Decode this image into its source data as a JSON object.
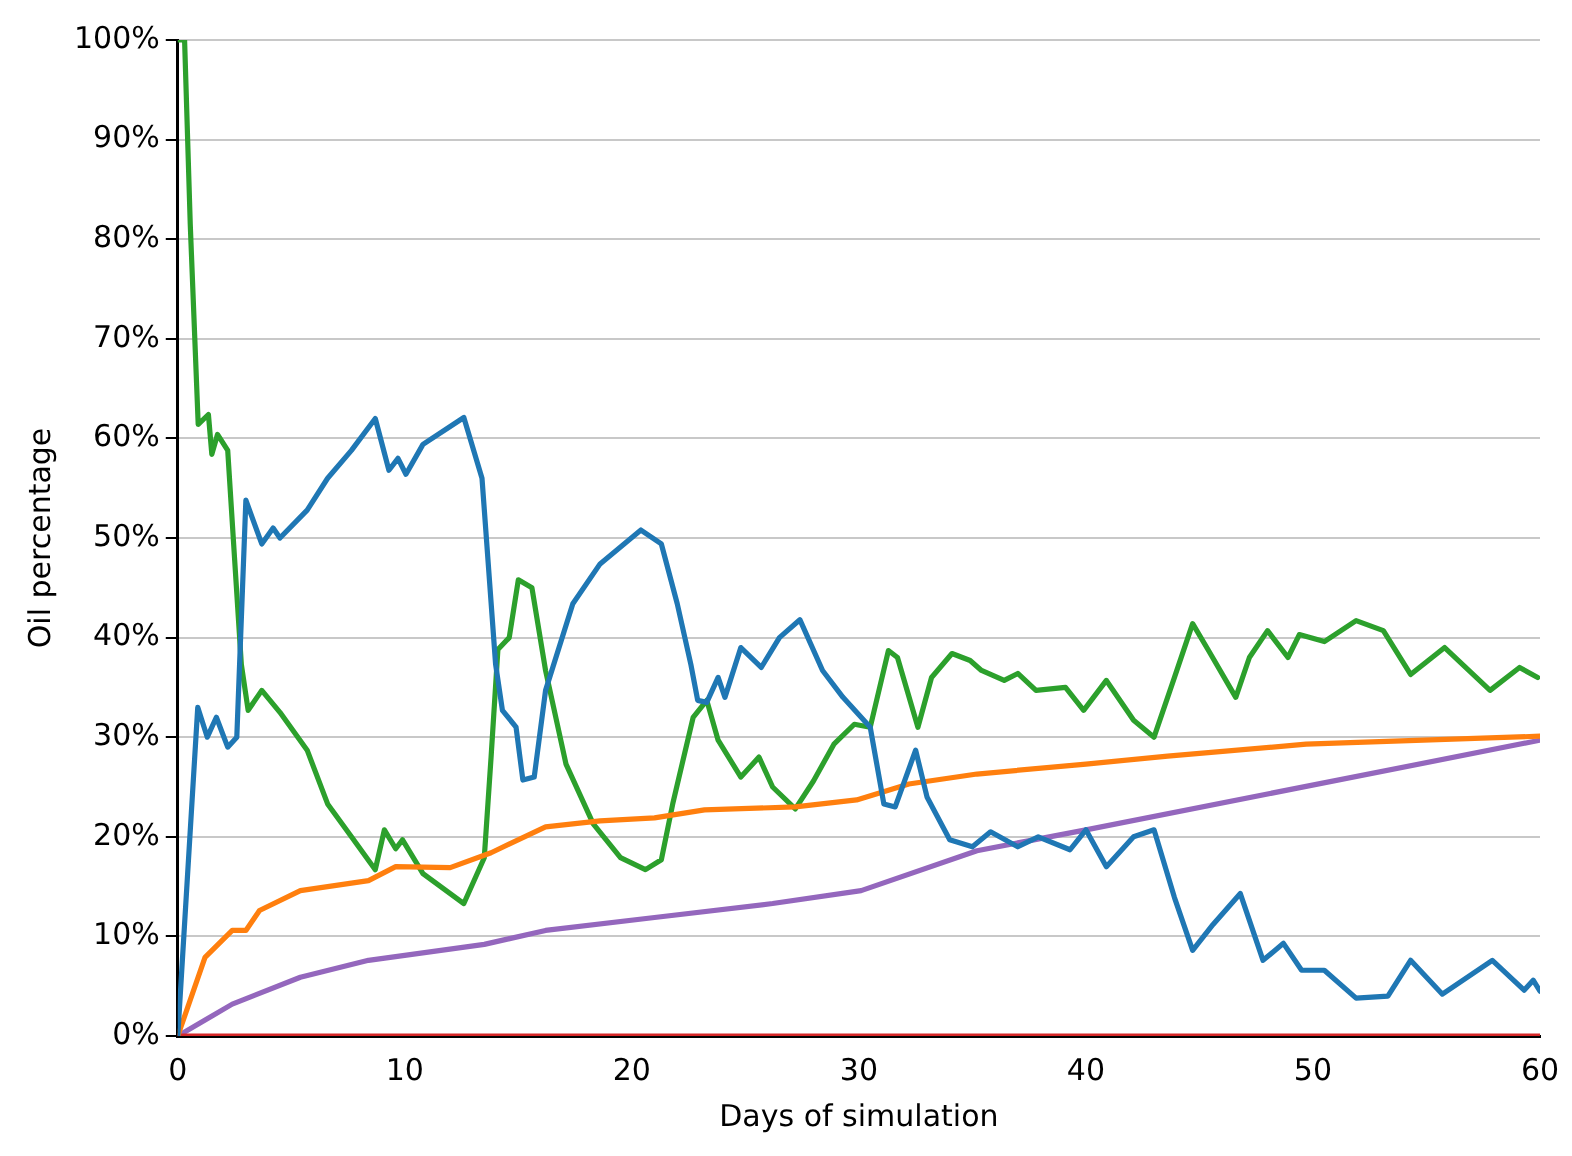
{
  "chart_data": {
    "type": "line",
    "xlabel": "Days of simulation",
    "ylabel": "Oil percentage",
    "xlim": [
      0,
      60
    ],
    "xticks": [
      0,
      10,
      20,
      30,
      40,
      50,
      60
    ],
    "ylim": [
      0,
      100
    ],
    "yticks": [
      {
        "value": 0,
        "label": "0%"
      },
      {
        "value": 10,
        "label": "10%"
      },
      {
        "value": 20,
        "label": "20%"
      },
      {
        "value": 30,
        "label": "30%"
      },
      {
        "value": 40,
        "label": "40%"
      },
      {
        "value": 50,
        "label": "50%"
      },
      {
        "value": 60,
        "label": "60%"
      },
      {
        "value": 70,
        "label": "70%"
      },
      {
        "value": 80,
        "label": "80%"
      },
      {
        "value": 90,
        "label": "90%"
      },
      {
        "value": 100,
        "label": "100%"
      }
    ],
    "grid": "y",
    "legend": false,
    "marker": "none",
    "line_style": "solid",
    "series": [
      {
        "color": "#1f77b4",
        "x": [
          0,
          0.88,
          1.3,
          1.7,
          2.2,
          2.6,
          3.0,
          3.7,
          4.2,
          4.5,
          5.7,
          6.6,
          7.65,
          8.7,
          9.3,
          9.7,
          10.05,
          10.8,
          12.6,
          13.4,
          14,
          14.3,
          14.9,
          15.2,
          15.7,
          16.2,
          17.4,
          18.6,
          20.4,
          21.3,
          22,
          22.6,
          22.9,
          23.3,
          23.8,
          24.1,
          24.8,
          25.7,
          26.5,
          27.4,
          28.4,
          29.3,
          30.5,
          31.1,
          31.6,
          32.5,
          33,
          34,
          35,
          35.8,
          37,
          37.9,
          39.3,
          40,
          40.9,
          42.1,
          43,
          43.9,
          44.7,
          45.6,
          46.8,
          47.8,
          48.7,
          49.5,
          50.5,
          51.9,
          53.3,
          54.3,
          55.7,
          57.9,
          59.3,
          59.7,
          60
        ],
        "values": [
          0,
          33,
          30,
          32,
          29,
          30,
          53.8,
          49.4,
          51,
          50,
          52.8,
          56,
          58.8,
          62,
          56.8,
          58,
          56.4,
          59.4,
          62.1,
          56,
          37.3,
          32.7,
          31,
          25.7,
          26,
          34.7,
          43.4,
          47.4,
          50.8,
          49.4,
          43.4,
          37.3,
          33.7,
          33.5,
          36,
          34,
          39,
          37,
          40,
          41.8,
          36.7,
          34,
          31,
          23.3,
          23,
          28.7,
          24,
          19.7,
          19,
          20.5,
          19,
          20,
          18.7,
          20.7,
          17,
          20,
          20.7,
          13.9,
          8.6,
          11.2,
          14.3,
          7.6,
          9.3,
          6.6,
          6.6,
          3.8,
          4,
          7.6,
          4.2,
          7.6,
          4.6,
          5.6,
          4.5
        ]
      },
      {
        "color": "#ff7f0e",
        "x": [
          0,
          1.2,
          2.4,
          3.0,
          3.6,
          5.4,
          8.4,
          9.6,
          12,
          13.8,
          16.2,
          18.6,
          21,
          23.2,
          27.2,
          29.9,
          32.2,
          35.2,
          40,
          43.6,
          49.7,
          60
        ],
        "values": [
          0,
          7.9,
          10.6,
          10.6,
          12.6,
          14.6,
          15.6,
          17,
          16.9,
          18.4,
          21,
          21.6,
          21.9,
          22.7,
          23,
          23.7,
          25.3,
          26.3,
          27.3,
          28.1,
          29.3,
          30.1
        ]
      },
      {
        "color": "#2ca02c",
        "x": [
          0,
          0.3,
          0.55,
          0.9,
          1.35,
          1.5,
          1.75,
          2.2,
          2.5,
          2.8,
          3.1,
          3.7,
          4.5,
          5.7,
          6.6,
          7.65,
          8.7,
          9.1,
          9.6,
          9.9,
          10.8,
          12.6,
          13.5,
          13.8,
          14.1,
          14.6,
          15,
          15.6,
          16.2,
          17.1,
          18.3,
          19.5,
          20.6,
          21.3,
          21.8,
          22.7,
          23.3,
          23.8,
          24.8,
          25.6,
          26.2,
          27.2,
          28,
          28.9,
          29.8,
          30.5,
          31.3,
          31.7,
          32.6,
          33.2,
          34.1,
          34.9,
          35.4,
          36.4,
          37,
          37.8,
          39.1,
          39.9,
          40.9,
          42.1,
          43,
          43.9,
          44.7,
          45.4,
          46.6,
          47.2,
          48,
          48.9,
          49.4,
          50.5,
          51.9,
          53.1,
          54.3,
          55.8,
          57.8,
          59.1,
          59.9
        ],
        "values": [
          100,
          100,
          81.5,
          61.4,
          62.4,
          58.4,
          60.4,
          58.8,
          48,
          37.3,
          32.7,
          34.7,
          32.5,
          28.7,
          23.3,
          20,
          16.7,
          20.7,
          18.8,
          19.7,
          16.3,
          13.3,
          17.9,
          28,
          38.8,
          40,
          45.8,
          45,
          36.7,
          27.3,
          21.3,
          17.9,
          16.7,
          17.7,
          23.3,
          32,
          33.7,
          29.7,
          26,
          28,
          25,
          22.8,
          25.6,
          29.3,
          31.3,
          31,
          38.7,
          38,
          31,
          36,
          38.4,
          37.7,
          36.7,
          35.7,
          36.4,
          34.7,
          35,
          32.7,
          35.7,
          31.7,
          30,
          36,
          41.4,
          38.7,
          34,
          38,
          40.7,
          38,
          40.3,
          39.6,
          41.7,
          40.7,
          36.3,
          39,
          34.7,
          37,
          36
        ]
      },
      {
        "color": "#d62728",
        "x": [
          0,
          60
        ],
        "values": [
          0,
          0
        ]
      },
      {
        "color": "#9467bd",
        "x": [
          0,
          2.4,
          5.4,
          8.4,
          13.5,
          16.2,
          21,
          26.2,
          30.1,
          35.2,
          40,
          60
        ],
        "values": [
          0,
          3.2,
          5.9,
          7.6,
          9.2,
          10.6,
          11.9,
          13.3,
          14.6,
          18.6,
          20.7,
          29.7
        ]
      }
    ]
  }
}
